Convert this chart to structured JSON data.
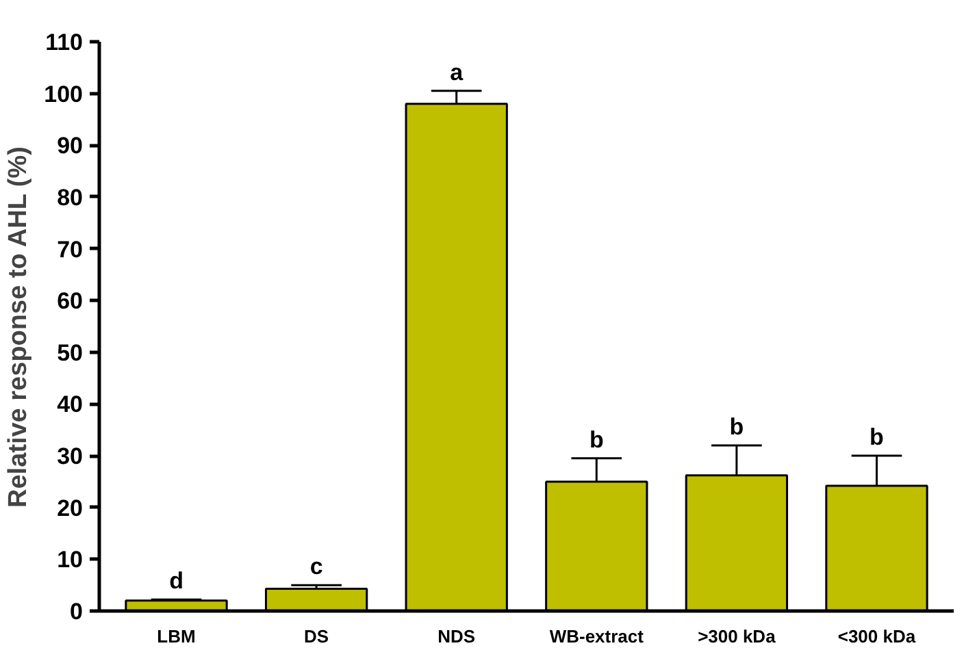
{
  "chart_data": {
    "type": "bar",
    "ylabel": "Relative response to AHL (%)",
    "categories": [
      "LBM",
      "DS",
      "NDS",
      "WB-extract",
      ">300 kDa",
      "<300 kDa"
    ],
    "values": [
      2,
      4.3,
      98,
      25,
      26.2,
      24.2
    ],
    "errors": [
      [
        2,
        2.2
      ],
      [
        4.3,
        5
      ],
      [
        98,
        100.5
      ],
      [
        25,
        29.5
      ],
      [
        26.2,
        32
      ],
      [
        24.2,
        30
      ]
    ],
    "color": "#bfbf00",
    "ylim": [
      0,
      110
    ],
    "yticks": [
      0,
      10,
      20,
      30,
      40,
      50,
      60,
      70,
      80,
      90,
      100,
      110
    ],
    "grid": false,
    "annotations": [
      "d",
      "c",
      "a",
      "b",
      "b",
      "b"
    ]
  }
}
